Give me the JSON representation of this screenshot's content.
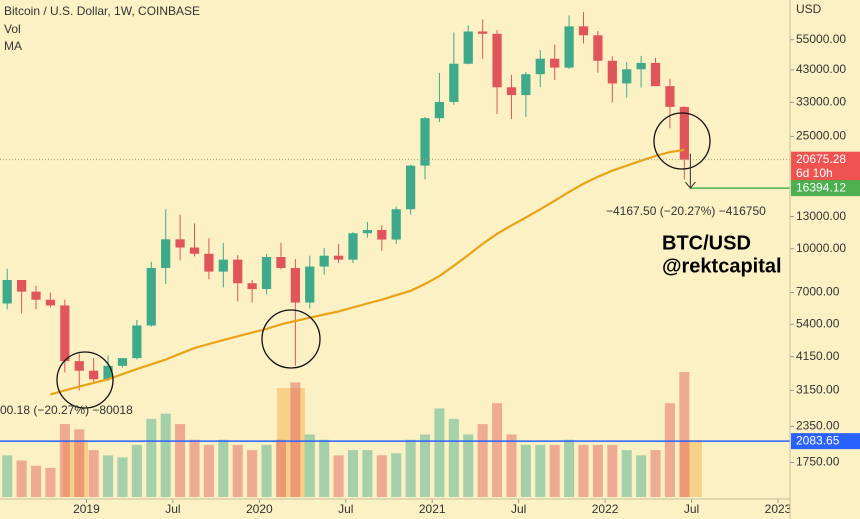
{
  "chart_data": {
    "type": "candlestick",
    "title": "Bitcoin / U.S. Dollar, 1W, COINBASE",
    "indicators": [
      "Vol",
      "MA"
    ],
    "currency": "USD",
    "log_scale": true,
    "up_color": "#3fa98b",
    "down_color": "#e0555a",
    "ma_color": "#e8a317",
    "x": [
      "2018-07",
      "2018-08",
      "2018-09",
      "2018-10",
      "2018-11",
      "2018-12",
      "2019-01",
      "2019-02",
      "2019-03",
      "2019-04",
      "2019-05",
      "2019-06",
      "2019-07",
      "2019-08",
      "2019-09",
      "2019-10",
      "2019-11",
      "2019-12",
      "2020-01",
      "2020-02",
      "2020-03",
      "2020-04",
      "2020-05",
      "2020-06",
      "2020-07",
      "2020-08",
      "2020-09",
      "2020-10",
      "2020-11",
      "2020-12",
      "2021-01",
      "2021-02",
      "2021-03",
      "2021-04",
      "2021-05",
      "2021-06",
      "2021-07",
      "2021-08",
      "2021-09",
      "2021-10",
      "2021-11",
      "2021-12",
      "2022-01",
      "2022-02",
      "2022-03",
      "2022-04",
      "2022-05",
      "2022-06"
    ],
    "open": [
      6400,
      7750,
      7050,
      6600,
      6300,
      4000,
      3700,
      3450,
      3850,
      4100,
      5350,
      8550,
      10800,
      10100,
      9600,
      8300,
      9150,
      7550,
      7200,
      9350,
      8550,
      6450,
      8650,
      9450,
      9150,
      11350,
      11650,
      10780,
      13800,
      19700,
      29000,
      33100,
      45200,
      58800,
      57700,
      37300,
      35000,
      41500,
      47100,
      43800,
      61300,
      57000,
      46300,
      38500,
      43200,
      45500,
      37650,
      31800
    ],
    "high": [
      8500,
      7750,
      7400,
      7000,
      6600,
      4250,
      4100,
      4200,
      4100,
      5600,
      9000,
      13800,
      13200,
      12300,
      10900,
      10500,
      9500,
      7750,
      9600,
      10500,
      9200,
      9450,
      10070,
      10400,
      11450,
      12450,
      12100,
      14100,
      19850,
      29300,
      41950,
      58350,
      61800,
      64850,
      59500,
      41300,
      42300,
      50500,
      52900,
      67000,
      69000,
      59050,
      48000,
      45800,
      48200,
      47450,
      40000,
      31950
    ],
    "low": [
      6100,
      5900,
      6100,
      6200,
      3650,
      3150,
      3350,
      3400,
      3800,
      4050,
      5300,
      7500,
      9100,
      9400,
      7800,
      7300,
      6500,
      6450,
      6900,
      8450,
      3850,
      6150,
      8100,
      8900,
      8900,
      10950,
      9850,
      10400,
      13200,
      17600,
      28100,
      32300,
      45000,
      47050,
      30000,
      28800,
      29300,
      37400,
      39600,
      43300,
      53250,
      42000,
      32950,
      34300,
      37200,
      37700,
      26700,
      17600
    ],
    "close": [
      7750,
      7050,
      6600,
      6300,
      4000,
      3700,
      3450,
      3850,
      4100,
      5350,
      8550,
      10800,
      10100,
      9600,
      8300,
      9150,
      7550,
      7200,
      9350,
      8550,
      6450,
      8650,
      9450,
      9150,
      11350,
      11650,
      10780,
      13800,
      19700,
      29000,
      33100,
      45200,
      58800,
      57700,
      37300,
      35000,
      41500,
      47100,
      43800,
      61300,
      57000,
      46300,
      38500,
      43200,
      45500,
      37650,
      31800,
      20675.28
    ],
    "volume": [
      40,
      35,
      30,
      28,
      70,
      65,
      45,
      40,
      38,
      50,
      75,
      80,
      70,
      55,
      50,
      55,
      50,
      45,
      50,
      55,
      110,
      60,
      55,
      40,
      45,
      45,
      40,
      42,
      55,
      60,
      85,
      75,
      60,
      70,
      90,
      60,
      50,
      50,
      50,
      55,
      50,
      50,
      50,
      45,
      40,
      45,
      90,
      120
    ],
    "ma_values": [
      null,
      null,
      null,
      3050,
      3150,
      3250,
      3350,
      3450,
      3600,
      3750,
      3900,
      4050,
      4250,
      4450,
      4600,
      4750,
      4900,
      5050,
      5200,
      5400,
      5550,
      5700,
      5850,
      6000,
      6200,
      6400,
      6600,
      6850,
      7100,
      7500,
      8000,
      8700,
      9500,
      10400,
      11300,
      12100,
      12900,
      13800,
      14800,
      15900,
      17000,
      18000,
      18900,
      19700,
      20500,
      21300,
      22000,
      22400
    ],
    "xlim": [
      "2018-07",
      "2023-01"
    ],
    "xticks": [
      {
        "value": "2019-01",
        "label": "2019"
      },
      {
        "value": "2019-07",
        "label": "Jul"
      },
      {
        "value": "2020-01",
        "label": "2020"
      },
      {
        "value": "2020-07",
        "label": "Jul"
      },
      {
        "value": "2021-01",
        "label": "2021"
      },
      {
        "value": "2021-07",
        "label": "Jul"
      },
      {
        "value": "2022-01",
        "label": "2022"
      },
      {
        "value": "2022-07",
        "label": "Jul"
      },
      {
        "value": "2023-01",
        "label": "2023"
      }
    ],
    "ylim": [
      1300,
      76000
    ],
    "yticks": [
      {
        "value": 55000,
        "label": "55000.00"
      },
      {
        "value": 43000,
        "label": "43000.00"
      },
      {
        "value": 33000,
        "label": "33000.00"
      },
      {
        "value": 25000,
        "label": "25000.00"
      },
      {
        "value": 13000,
        "label": "13000.00"
      },
      {
        "value": 10000,
        "label": "10000.00"
      },
      {
        "value": 7000,
        "label": "7000.00"
      },
      {
        "value": 5400,
        "label": "5400.00"
      },
      {
        "value": 4150,
        "label": "4150.00"
      },
      {
        "value": 3150,
        "label": "3150.00"
      },
      {
        "value": 2350,
        "label": "2350.00"
      },
      {
        "value": 1750,
        "label": "1750.00"
      }
    ],
    "last_price": 20675.28,
    "countdown": "6d 10h",
    "target_price": 16394.12,
    "support_level": 2083.65,
    "annotations": [
      "−4167.50 (−20.27%) −416750",
      "00.18 (−20.27%) −80018",
      "BTC/USD",
      "@rektcapital"
    ]
  }
}
